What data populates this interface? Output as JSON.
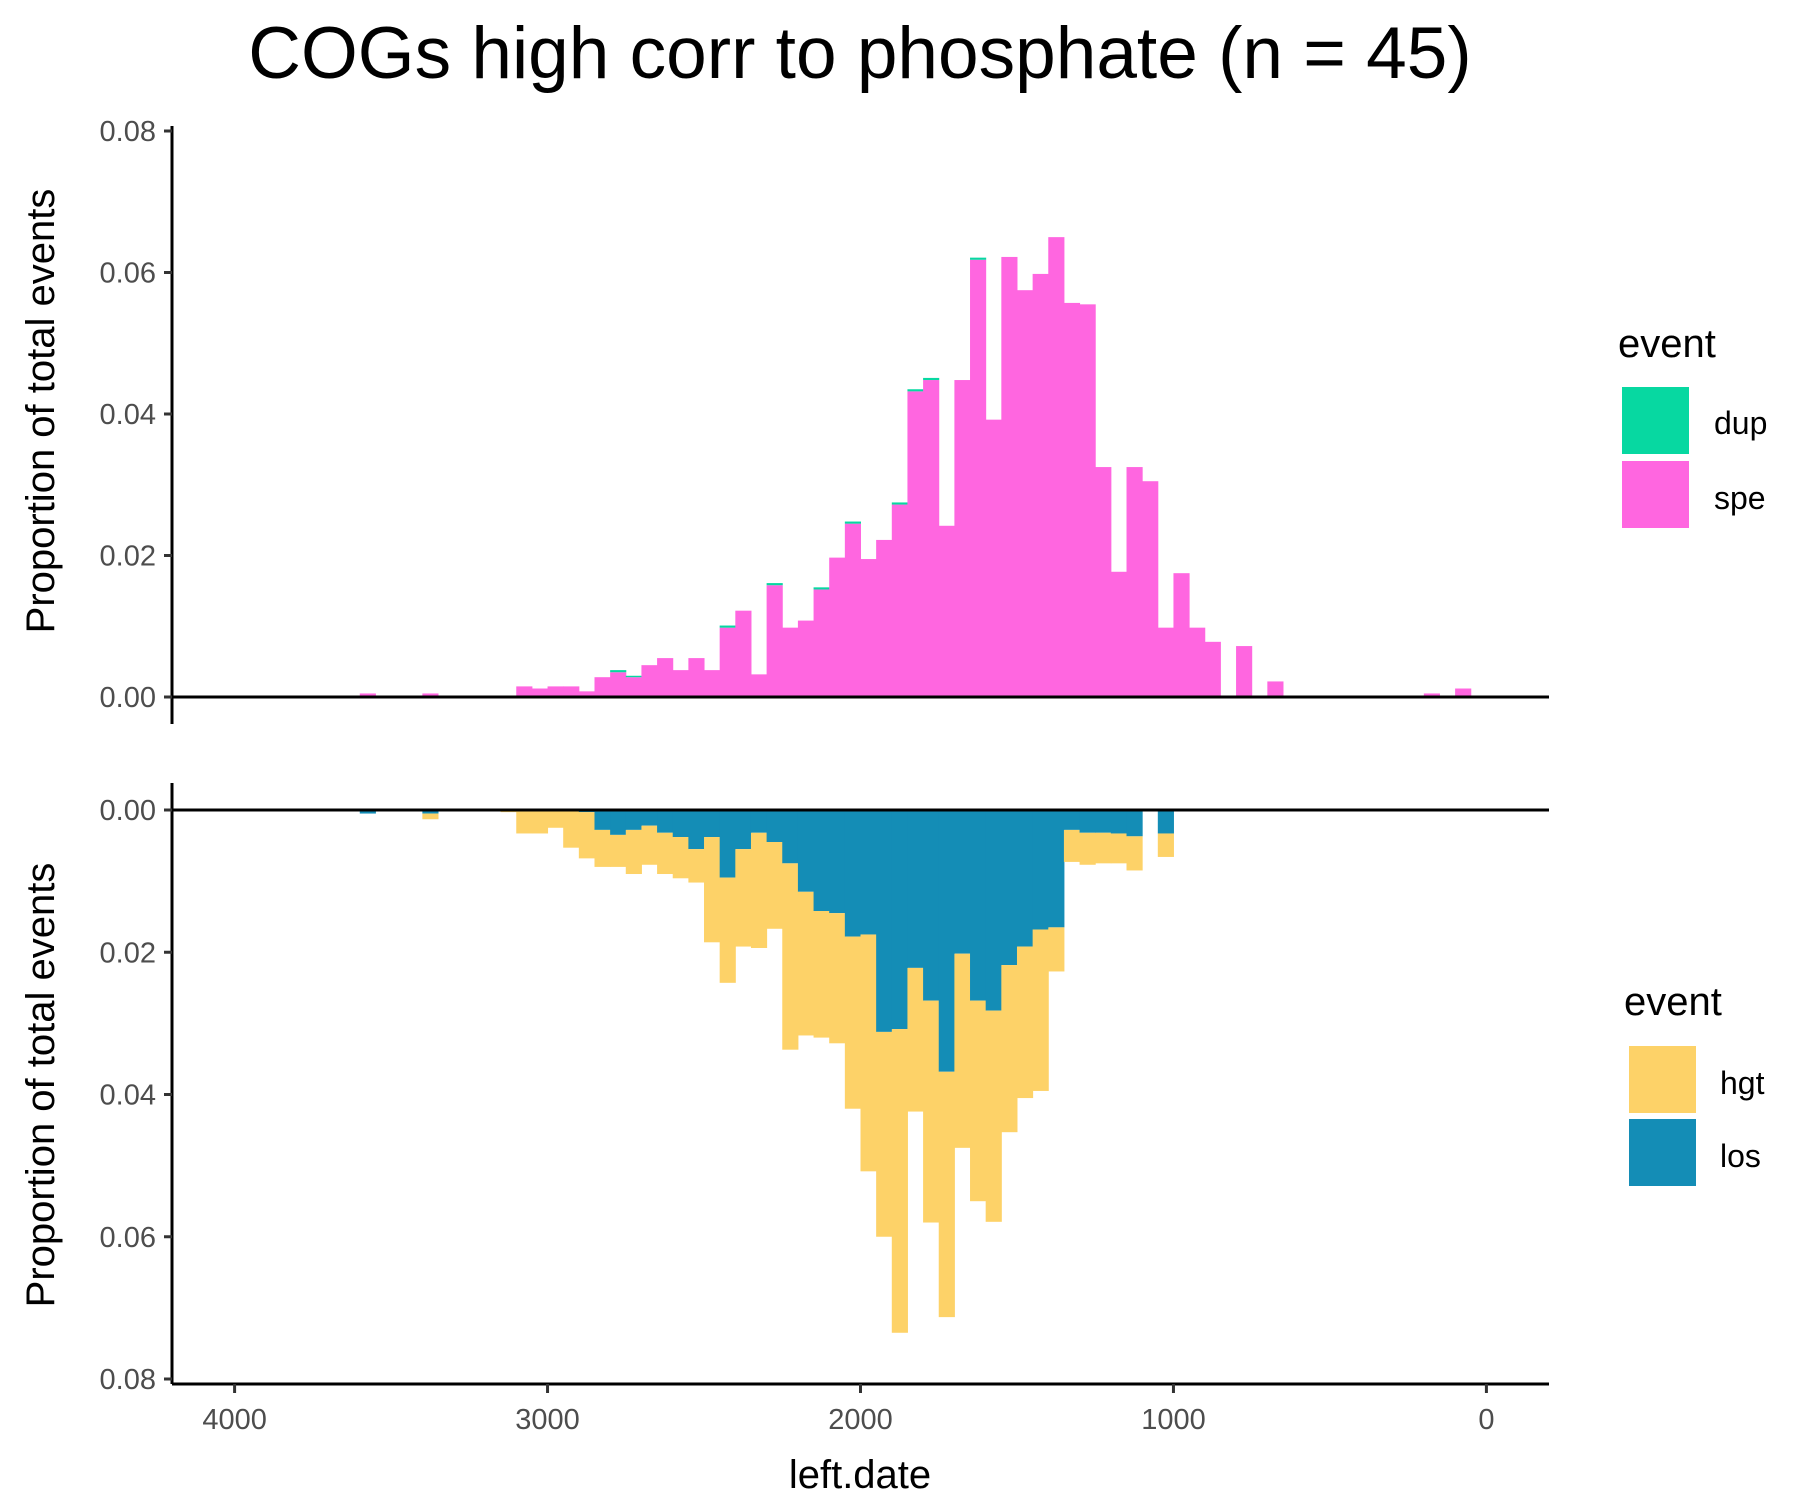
{
  "chart_data": {
    "type": "bar",
    "title": "COGs high corr to phosphate (n = 45)",
    "xlabel": "left.date",
    "x_reversed": true,
    "xlim": [
      4200,
      -200
    ],
    "x_ticks": [
      4000,
      3000,
      2000,
      1000,
      0
    ],
    "x_tick_labels": [
      "4000",
      "3000",
      "2000",
      "1000",
      "0"
    ],
    "bin_width": 50,
    "x": [
      3575,
      3375,
      3125,
      3075,
      3025,
      2975,
      2925,
      2875,
      2825,
      2775,
      2725,
      2675,
      2625,
      2575,
      2525,
      2475,
      2425,
      2375,
      2325,
      2275,
      2225,
      2175,
      2125,
      2075,
      2025,
      1975,
      1925,
      1875,
      1825,
      1775,
      1725,
      1675,
      1625,
      1575,
      1525,
      1475,
      1425,
      1375,
      1325,
      1275,
      1225,
      1175,
      1125,
      1075,
      1025,
      975,
      925,
      875,
      825,
      775,
      725,
      675,
      175,
      75
    ],
    "panels": [
      {
        "ylabel": "Proportion of total events",
        "ylim": [
          0,
          0.08
        ],
        "y_ticks": [
          0,
          0.02,
          0.04,
          0.06,
          0.08
        ],
        "y_tick_labels": [
          "0.00",
          "0.02",
          "0.04",
          "0.06",
          "0.08"
        ],
        "y_direction": "up",
        "legend_title": "event",
        "series": [
          {
            "name": "spe",
            "color": "#FF66E0",
            "values": [
              0.0005,
              0.0005,
              0,
              0.0015,
              0.0012,
              0.0015,
              0.0015,
              0.0008,
              0.0028,
              0.0035,
              0.0028,
              0.0045,
              0.0055,
              0.0038,
              0.0055,
              0.0038,
              0.0098,
              0.0122,
              0.0032,
              0.0158,
              0.0098,
              0.0108,
              0.0152,
              0.0197,
              0.0245,
              0.0195,
              0.0222,
              0.0272,
              0.0432,
              0.0448,
              0.0242,
              0.0448,
              0.0618,
              0.0392,
              0.0622,
              0.0575,
              0.0598,
              0.065,
              0.0557,
              0.0555,
              0.0325,
              0.0177,
              0.0325,
              0.0305,
              0.0098,
              0.0175,
              0.0098,
              0.0078,
              0,
              0.0072,
              0,
              0.0022,
              0.0005,
              0.0012
            ]
          },
          {
            "name": "dup",
            "color": "#07D8A1",
            "values": [
              0,
              0,
              0,
              0,
              0,
              0,
              0,
              0,
              0,
              0.0003,
              0.0002,
              0,
              0,
              0,
              0,
              0,
              0.0003,
              0,
              0,
              0.0003,
              0,
              0,
              0.0003,
              0,
              0.0003,
              0,
              0,
              0.0003,
              0.0003,
              0.0003,
              0,
              0,
              0.0003,
              0,
              0,
              0,
              0,
              0,
              0,
              0,
              0,
              0,
              0,
              0,
              0,
              0,
              0,
              0,
              0,
              0,
              0,
              0,
              0,
              0
            ]
          }
        ]
      },
      {
        "ylabel": "Proportion of total events",
        "ylim": [
          0,
          0.08
        ],
        "y_ticks": [
          0,
          0.02,
          0.04,
          0.06,
          0.08
        ],
        "y_tick_labels": [
          "0.00",
          "0.02",
          "0.04",
          "0.06",
          "0.08"
        ],
        "y_direction": "down",
        "legend_title": "event",
        "series": [
          {
            "name": "los",
            "color": "#148DB6",
            "values": [
              0.0005,
              0.0005,
              0,
              0,
              0,
              0,
              0,
              0.0003,
              0.0028,
              0.0035,
              0.0028,
              0.0022,
              0.0032,
              0.0038,
              0.0055,
              0.0038,
              0.0095,
              0.0055,
              0.0032,
              0.0045,
              0.0075,
              0.0115,
              0.0142,
              0.0145,
              0.0178,
              0.0175,
              0.0312,
              0.0308,
              0.0222,
              0.0268,
              0.0368,
              0.0202,
              0.0268,
              0.0282,
              0.0218,
              0.0192,
              0.0168,
              0.0165,
              0.0028,
              0.0032,
              0.0032,
              0.0033,
              0.0037,
              0,
              0.0033,
              0,
              0,
              0,
              0,
              0,
              0,
              0,
              0,
              0
            ]
          },
          {
            "name": "hgt",
            "color": "#FDD268",
            "values": [
              0,
              0.0008,
              0.0003,
              0.0033,
              0.0033,
              0.0025,
              0.0053,
              0.0065,
              0.0052,
              0.0045,
              0.0062,
              0.0055,
              0.0058,
              0.0058,
              0.0047,
              0.0148,
              0.0148,
              0.0137,
              0.0162,
              0.0122,
              0.0262,
              0.0202,
              0.0178,
              0.0183,
              0.0242,
              0.0333,
              0.0288,
              0.0427,
              0.0202,
              0.0312,
              0.0345,
              0.0273,
              0.0282,
              0.0297,
              0.0235,
              0.0213,
              0.0227,
              0.0062,
              0.0045,
              0.0045,
              0.0043,
              0.0042,
              0.0048,
              0,
              0.0033,
              0,
              0,
              0,
              0,
              0,
              0,
              0,
              0,
              0
            ]
          }
        ]
      }
    ]
  }
}
